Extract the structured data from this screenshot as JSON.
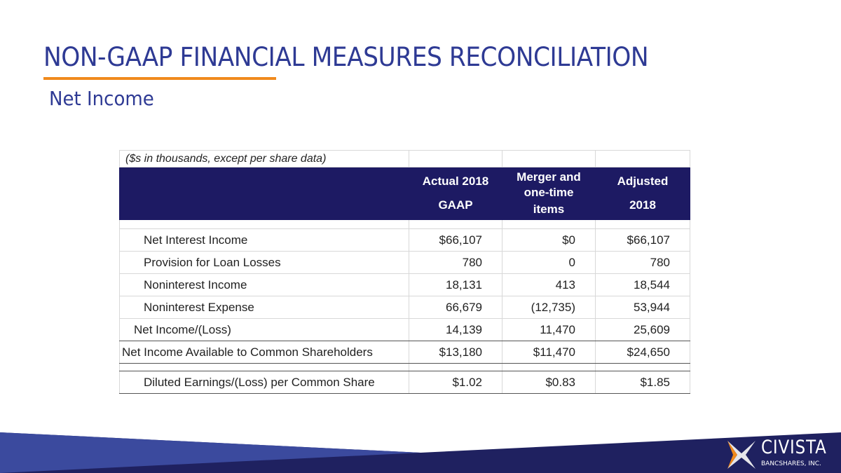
{
  "title": "NON-GAAP FINANCIAL MEASURES RECONCILIATION",
  "subtitle": "Net Income",
  "table": {
    "note": "($s in thousands, except per share data)",
    "headers": [
      [
        "Actual 2018",
        "GAAP"
      ],
      [
        "Merger and one-time",
        "items"
      ],
      [
        "Adjusted",
        "2018"
      ]
    ],
    "rows": [
      {
        "label": "Net Interest Income",
        "values": [
          "$66,107",
          "$0",
          "$66,107"
        ]
      },
      {
        "label": "Provision for Loan Losses",
        "values": [
          "780",
          "0",
          "780"
        ]
      },
      {
        "label": "Noninterest Income",
        "values": [
          "18,131",
          "413",
          "18,544"
        ]
      },
      {
        "label": "Noninterest Expense",
        "values": [
          "66,679",
          "(12,735)",
          "53,944"
        ]
      },
      {
        "label": "Net Income/(Loss)",
        "values": [
          "14,139",
          "11,470",
          "25,609"
        ]
      },
      {
        "label": "Net Income Available to Common Shareholders",
        "values": [
          "$13,180",
          "$11,470",
          "$24,650"
        ]
      },
      {
        "label": "Diluted Earnings/(Loss) per Common Share",
        "values": [
          "$1.02",
          "$0.83",
          "$1.85"
        ]
      }
    ]
  },
  "logo": {
    "name": "CIVISTA",
    "sub": "BANCSHARES, INC."
  },
  "colors": {
    "title": "#2e3a94",
    "accent": "#f08a1c",
    "header": "#1d1a63",
    "footer_dark": "#1f2160",
    "footer_light": "#3b4a9e"
  }
}
